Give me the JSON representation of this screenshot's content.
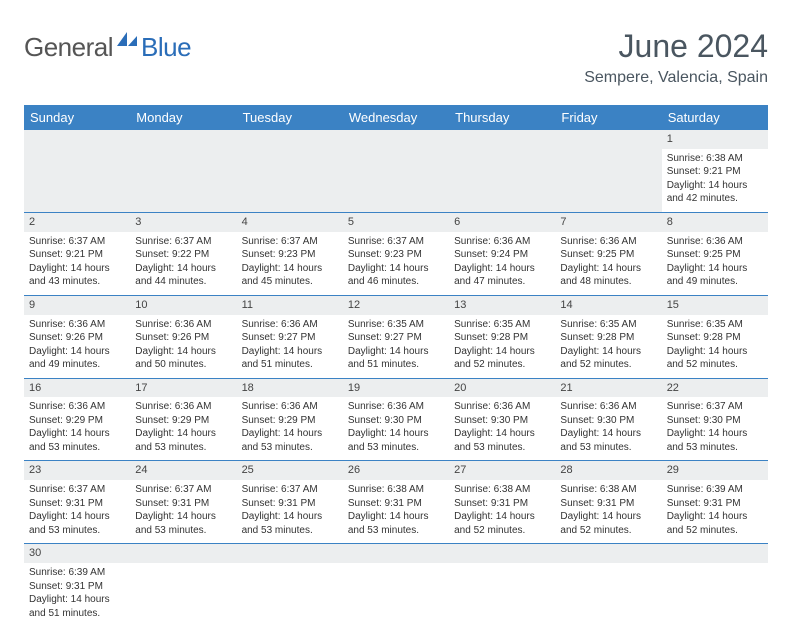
{
  "brand": {
    "part1": "General",
    "part2": "Blue"
  },
  "title": "June 2024",
  "location": "Sempere, Valencia, Spain",
  "weekdays": [
    "Sunday",
    "Monday",
    "Tuesday",
    "Wednesday",
    "Thursday",
    "Friday",
    "Saturday"
  ],
  "colors": {
    "header_bg": "#3b82c4",
    "header_text": "#ffffff",
    "daynum_bg": "#eceeef",
    "rule": "#3b82c4",
    "title_color": "#4a5660",
    "brand_gray": "#555555",
    "brand_blue": "#2a6db8",
    "text": "#333333"
  },
  "fonts": {
    "title_size_pt": 24,
    "location_size_pt": 12,
    "weekday_size_pt": 10,
    "body_size_pt": 7.5,
    "daynum_size_pt": 8.5
  },
  "start_weekday_index": 6,
  "days_in_month": 30,
  "details": {
    "1": {
      "sunrise": "6:38 AM",
      "sunset": "9:21 PM",
      "daylight": "14 hours and 42 minutes."
    },
    "2": {
      "sunrise": "6:37 AM",
      "sunset": "9:21 PM",
      "daylight": "14 hours and 43 minutes."
    },
    "3": {
      "sunrise": "6:37 AM",
      "sunset": "9:22 PM",
      "daylight": "14 hours and 44 minutes."
    },
    "4": {
      "sunrise": "6:37 AM",
      "sunset": "9:23 PM",
      "daylight": "14 hours and 45 minutes."
    },
    "5": {
      "sunrise": "6:37 AM",
      "sunset": "9:23 PM",
      "daylight": "14 hours and 46 minutes."
    },
    "6": {
      "sunrise": "6:36 AM",
      "sunset": "9:24 PM",
      "daylight": "14 hours and 47 minutes."
    },
    "7": {
      "sunrise": "6:36 AM",
      "sunset": "9:25 PM",
      "daylight": "14 hours and 48 minutes."
    },
    "8": {
      "sunrise": "6:36 AM",
      "sunset": "9:25 PM",
      "daylight": "14 hours and 49 minutes."
    },
    "9": {
      "sunrise": "6:36 AM",
      "sunset": "9:26 PM",
      "daylight": "14 hours and 49 minutes."
    },
    "10": {
      "sunrise": "6:36 AM",
      "sunset": "9:26 PM",
      "daylight": "14 hours and 50 minutes."
    },
    "11": {
      "sunrise": "6:36 AM",
      "sunset": "9:27 PM",
      "daylight": "14 hours and 51 minutes."
    },
    "12": {
      "sunrise": "6:35 AM",
      "sunset": "9:27 PM",
      "daylight": "14 hours and 51 minutes."
    },
    "13": {
      "sunrise": "6:35 AM",
      "sunset": "9:28 PM",
      "daylight": "14 hours and 52 minutes."
    },
    "14": {
      "sunrise": "6:35 AM",
      "sunset": "9:28 PM",
      "daylight": "14 hours and 52 minutes."
    },
    "15": {
      "sunrise": "6:35 AM",
      "sunset": "9:28 PM",
      "daylight": "14 hours and 52 minutes."
    },
    "16": {
      "sunrise": "6:36 AM",
      "sunset": "9:29 PM",
      "daylight": "14 hours and 53 minutes."
    },
    "17": {
      "sunrise": "6:36 AM",
      "sunset": "9:29 PM",
      "daylight": "14 hours and 53 minutes."
    },
    "18": {
      "sunrise": "6:36 AM",
      "sunset": "9:29 PM",
      "daylight": "14 hours and 53 minutes."
    },
    "19": {
      "sunrise": "6:36 AM",
      "sunset": "9:30 PM",
      "daylight": "14 hours and 53 minutes."
    },
    "20": {
      "sunrise": "6:36 AM",
      "sunset": "9:30 PM",
      "daylight": "14 hours and 53 minutes."
    },
    "21": {
      "sunrise": "6:36 AM",
      "sunset": "9:30 PM",
      "daylight": "14 hours and 53 minutes."
    },
    "22": {
      "sunrise": "6:37 AM",
      "sunset": "9:30 PM",
      "daylight": "14 hours and 53 minutes."
    },
    "23": {
      "sunrise": "6:37 AM",
      "sunset": "9:31 PM",
      "daylight": "14 hours and 53 minutes."
    },
    "24": {
      "sunrise": "6:37 AM",
      "sunset": "9:31 PM",
      "daylight": "14 hours and 53 minutes."
    },
    "25": {
      "sunrise": "6:37 AM",
      "sunset": "9:31 PM",
      "daylight": "14 hours and 53 minutes."
    },
    "26": {
      "sunrise": "6:38 AM",
      "sunset": "9:31 PM",
      "daylight": "14 hours and 53 minutes."
    },
    "27": {
      "sunrise": "6:38 AM",
      "sunset": "9:31 PM",
      "daylight": "14 hours and 52 minutes."
    },
    "28": {
      "sunrise": "6:38 AM",
      "sunset": "9:31 PM",
      "daylight": "14 hours and 52 minutes."
    },
    "29": {
      "sunrise": "6:39 AM",
      "sunset": "9:31 PM",
      "daylight": "14 hours and 52 minutes."
    },
    "30": {
      "sunrise": "6:39 AM",
      "sunset": "9:31 PM",
      "daylight": "14 hours and 51 minutes."
    }
  },
  "labels": {
    "sunrise_prefix": "Sunrise: ",
    "sunset_prefix": "Sunset: ",
    "daylight_prefix": "Daylight: "
  }
}
